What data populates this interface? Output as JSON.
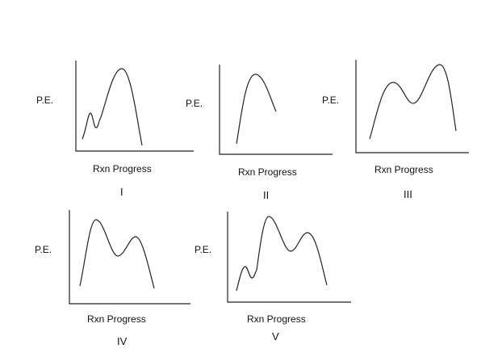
{
  "colors": {
    "line": "#222222",
    "background": "#ffffff"
  },
  "panels": [
    {
      "id": "I",
      "ylabel": "P.E.",
      "xlabel": "Rxn Progress",
      "numeral": "I"
    },
    {
      "id": "II",
      "ylabel": "P.E.",
      "xlabel": "Rxn Progress",
      "numeral": "II"
    },
    {
      "id": "III",
      "ylabel": "P.E.",
      "xlabel": "Rxn Progress",
      "numeral": "III"
    },
    {
      "id": "IV",
      "ylabel": "P.E.",
      "xlabel": "Rxn Progress",
      "numeral": "IV"
    },
    {
      "id": "V",
      "ylabel": "P.E.",
      "xlabel": "Rxn Progress",
      "numeral": "V"
    }
  ]
}
